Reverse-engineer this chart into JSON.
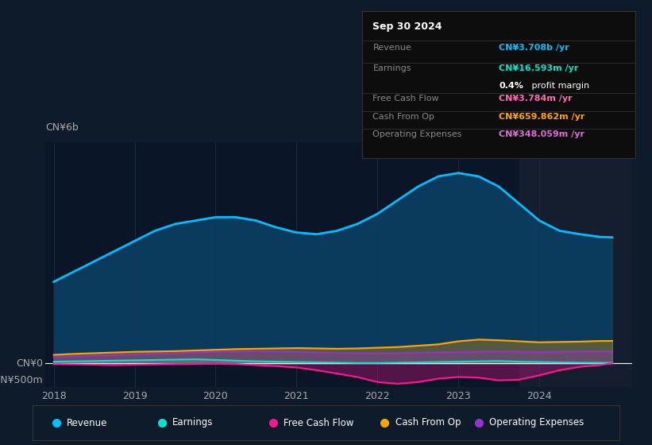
{
  "bg_color": "#0d1b2a",
  "chart_area_color": "#0a1628",
  "grid_color": "#1e3050",
  "text_color": "#aaaaaa",
  "ylabel_text": "CN¥6b",
  "y0_text": "CN¥0",
  "yneg_text": "-CN¥500m",
  "years": [
    2018.0,
    2018.25,
    2018.5,
    2018.75,
    2019.0,
    2019.25,
    2019.5,
    2019.75,
    2020.0,
    2020.25,
    2020.5,
    2020.75,
    2021.0,
    2021.25,
    2021.5,
    2021.75,
    2022.0,
    2022.25,
    2022.5,
    2022.75,
    2023.0,
    2023.25,
    2023.5,
    2023.75,
    2024.0,
    2024.25,
    2024.5,
    2024.75,
    2024.9
  ],
  "revenue": [
    2.4,
    2.7,
    3.0,
    3.3,
    3.6,
    3.9,
    4.1,
    4.2,
    4.3,
    4.3,
    4.2,
    4.0,
    3.85,
    3.8,
    3.9,
    4.1,
    4.4,
    4.8,
    5.2,
    5.5,
    5.6,
    5.5,
    5.2,
    4.7,
    4.2,
    3.9,
    3.8,
    3.72,
    3.708
  ],
  "earnings": [
    0.05,
    0.06,
    0.07,
    0.08,
    0.09,
    0.1,
    0.11,
    0.12,
    0.1,
    0.08,
    0.06,
    0.05,
    0.04,
    0.03,
    0.02,
    0.01,
    0.01,
    0.02,
    0.03,
    0.04,
    0.05,
    0.06,
    0.07,
    0.05,
    0.04,
    0.03,
    0.02,
    0.017,
    0.0166
  ],
  "free_cash_flow": [
    -0.02,
    -0.03,
    -0.04,
    -0.05,
    -0.04,
    -0.03,
    -0.02,
    -0.01,
    0.0,
    -0.02,
    -0.05,
    -0.08,
    -0.12,
    -0.2,
    -0.3,
    -0.4,
    -0.55,
    -0.6,
    -0.55,
    -0.45,
    -0.4,
    -0.42,
    -0.5,
    -0.48,
    -0.35,
    -0.2,
    -0.1,
    -0.05,
    0.004
  ],
  "cash_from_op": [
    0.25,
    0.28,
    0.3,
    0.32,
    0.34,
    0.35,
    0.36,
    0.38,
    0.4,
    0.42,
    0.43,
    0.44,
    0.45,
    0.44,
    0.43,
    0.44,
    0.46,
    0.48,
    0.52,
    0.56,
    0.65,
    0.7,
    0.68,
    0.65,
    0.62,
    0.63,
    0.64,
    0.66,
    0.66
  ],
  "op_expenses": [
    0.18,
    0.2,
    0.22,
    0.24,
    0.26,
    0.28,
    0.3,
    0.32,
    0.34,
    0.35,
    0.36,
    0.35,
    0.34,
    0.32,
    0.31,
    0.3,
    0.29,
    0.3,
    0.31,
    0.32,
    0.33,
    0.34,
    0.35,
    0.34,
    0.33,
    0.34,
    0.35,
    0.348,
    0.348
  ],
  "revenue_color": "#00bfff",
  "revenue_fill": "#0a3a5c",
  "earnings_color": "#00e5cc",
  "free_cash_flow_color": "#ff1493",
  "cash_from_op_color": "#ffa500",
  "op_expenses_color": "#9932cc",
  "shade_start": 2023.75,
  "ylim_min": -0.7,
  "ylim_max": 6.5,
  "xticks": [
    2018,
    2019,
    2020,
    2021,
    2022,
    2023,
    2024
  ],
  "tooltip": {
    "date": "Sep 30 2024",
    "revenue_label": "Revenue",
    "revenue_value": "CN¥3.708b /yr",
    "revenue_color": "#00bfff",
    "earnings_label": "Earnings",
    "earnings_value": "CN¥16.593m /yr",
    "earnings_color": "#00e5cc",
    "fcf_label": "Free Cash Flow",
    "fcf_value": "CN¥3.784m /yr",
    "fcf_color": "#ff69b4",
    "cfo_label": "Cash From Op",
    "cfo_value": "CN¥659.862m /yr",
    "cfo_color": "#ffa500",
    "opex_label": "Operating Expenses",
    "opex_value": "CN¥348.059m /yr",
    "opex_color": "#da70d6",
    "bg": "#0d0d0d",
    "border": "#333333",
    "label_color": "#888888",
    "title_color": "#ffffff"
  },
  "legend_items": [
    {
      "label": "Revenue",
      "color": "#00bfff"
    },
    {
      "label": "Earnings",
      "color": "#00e5cc"
    },
    {
      "label": "Free Cash Flow",
      "color": "#ff1493"
    },
    {
      "label": "Cash From Op",
      "color": "#ffa500"
    },
    {
      "label": "Operating Expenses",
      "color": "#9932cc"
    }
  ]
}
